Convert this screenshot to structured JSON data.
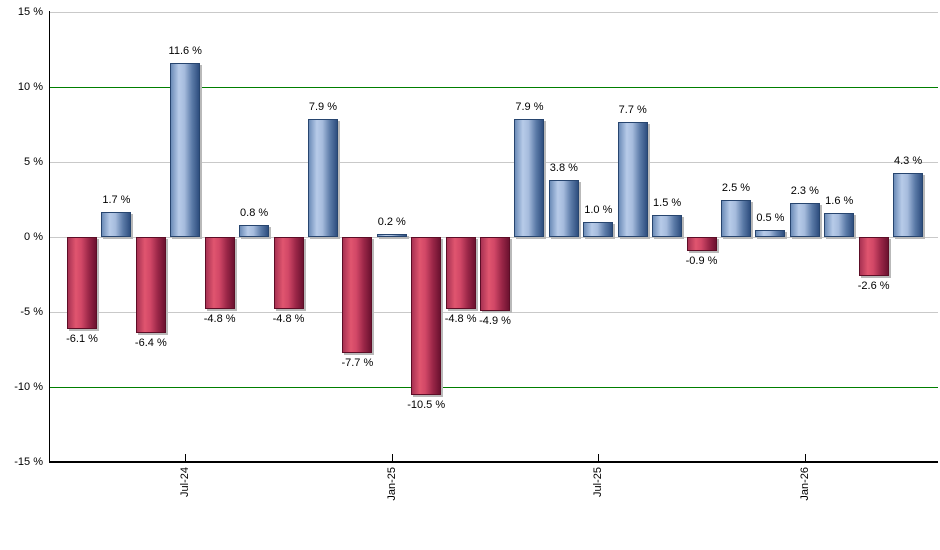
{
  "chart_data": {
    "type": "bar",
    "title": "",
    "xlabel": "",
    "ylabel": "",
    "y_unit": "%",
    "ylim": [
      -15,
      15
    ],
    "grid": true,
    "legend": "none",
    "y_ticks": [
      {
        "value": 15,
        "label": "15 %"
      },
      {
        "value": 10,
        "label": "10 %"
      },
      {
        "value": 5,
        "label": "5 %"
      },
      {
        "value": 0,
        "label": "0 %"
      },
      {
        "value": -5,
        "label": "-5 %"
      },
      {
        "value": -10,
        "label": "-10 %"
      },
      {
        "value": -15,
        "label": "-15 %"
      }
    ],
    "threshold_lines": [
      10,
      -10
    ],
    "x_ticks": [
      {
        "label": "Jul-24",
        "bar_index": 3
      },
      {
        "label": "Jan-25",
        "bar_index": 9
      },
      {
        "label": "Jul-25",
        "bar_index": 15
      },
      {
        "label": "Jan-26",
        "bar_index": 21
      }
    ],
    "bars": [
      {
        "value": -6.1,
        "label": "-6.1 %"
      },
      {
        "value": 1.7,
        "label": "1.7 %"
      },
      {
        "value": -6.4,
        "label": "-6.4 %"
      },
      {
        "value": 11.6,
        "label": "11.6 %"
      },
      {
        "value": -4.8,
        "label": "-4.8 %"
      },
      {
        "value": 0.8,
        "label": "0.8 %"
      },
      {
        "value": -4.8,
        "label": "-4.8 %"
      },
      {
        "value": 7.9,
        "label": "7.9 %"
      },
      {
        "value": -7.7,
        "label": "-7.7 %"
      },
      {
        "value": 0.2,
        "label": "0.2 %"
      },
      {
        "value": -10.5,
        "label": "-10.5 %"
      },
      {
        "value": -4.8,
        "label": "-4.8 %"
      },
      {
        "value": -4.9,
        "label": "-4.9 %"
      },
      {
        "value": 7.9,
        "label": "7.9 %"
      },
      {
        "value": 3.8,
        "label": "3.8 %"
      },
      {
        "value": 1.0,
        "label": "1.0 %"
      },
      {
        "value": 7.7,
        "label": "7.7 %"
      },
      {
        "value": 1.5,
        "label": "1.5 %"
      },
      {
        "value": -0.9,
        "label": "-0.9 %"
      },
      {
        "value": 2.5,
        "label": "2.5 %"
      },
      {
        "value": 0.5,
        "label": "0.5 %"
      },
      {
        "value": 2.3,
        "label": "2.3 %"
      },
      {
        "value": 1.6,
        "label": "1.6 %"
      },
      {
        "value": -2.6,
        "label": "-2.6 %"
      },
      {
        "value": 4.3,
        "label": "4.3 %"
      }
    ]
  },
  "colors": {
    "positive_bar": "#6488bd",
    "negative_bar": "#c43a5c",
    "gridline": "#c9c9c9",
    "threshold_line": "#007f00",
    "axis": "#000000",
    "text": "#000000",
    "background": "#ffffff"
  }
}
